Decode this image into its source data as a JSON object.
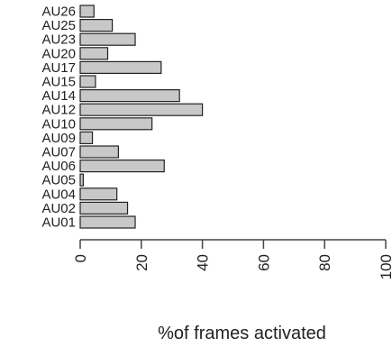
{
  "chart_data": {
    "type": "bar",
    "orientation": "horizontal",
    "categories": [
      "AU01",
      "AU02",
      "AU04",
      "AU05",
      "AU06",
      "AU07",
      "AU09",
      "AU10",
      "AU12",
      "AU14",
      "AU15",
      "AU17",
      "AU20",
      "AU23",
      "AU25",
      "AU26"
    ],
    "values": [
      18,
      15.5,
      12,
      1,
      27.5,
      12.5,
      4,
      23.5,
      40,
      32.5,
      5,
      26.5,
      9,
      18,
      10.5,
      4.5
    ],
    "xlabel": "%of frames activated",
    "ylabel": "",
    "xlim": [
      0,
      100
    ],
    "xticks": [
      0,
      20,
      40,
      60,
      80,
      100
    ],
    "bar_color": "#c8c8c8",
    "bar_edge_color": "#222222",
    "grid": false,
    "legend": false
  }
}
